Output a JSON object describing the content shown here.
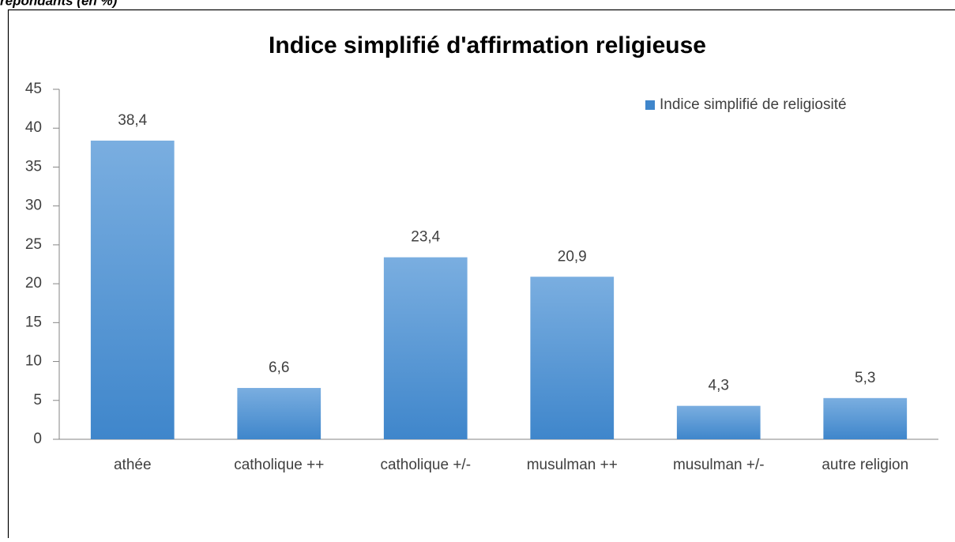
{
  "chart_data": {
    "type": "bar",
    "note": "répondants (en %)",
    "title": "Indice simplifié d'affirmation religieuse",
    "categories": [
      "athée",
      "catholique ++",
      "catholique +/-",
      "musulman ++",
      "musulman +/-",
      "autre religion"
    ],
    "series": [
      {
        "name": "Indice simplifié de religiosité",
        "color": "#3f86cb",
        "values": [
          38.4,
          6.6,
          23.4,
          20.9,
          4.3,
          5.3
        ],
        "value_labels": [
          "38,4",
          "6,6",
          "23,4",
          "20,9",
          "4,3",
          "5,3"
        ]
      }
    ],
    "ylim": [
      0,
      45
    ],
    "yticks": [
      0,
      5,
      10,
      15,
      20,
      25,
      30,
      35,
      40,
      45
    ],
    "legend": "top-right",
    "grid": false
  }
}
